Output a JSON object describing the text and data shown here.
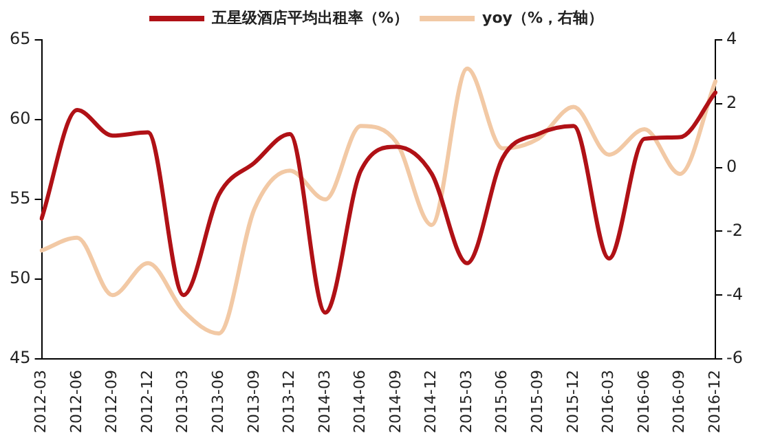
{
  "chart_data": {
    "type": "line",
    "categories": [
      "2012-03",
      "2012-06",
      "2012-09",
      "2012-12",
      "2013-03",
      "2013-06",
      "2013-09",
      "2013-12",
      "2014-03",
      "2014-06",
      "2014-09",
      "2014-12",
      "2015-03",
      "2015-06",
      "2015-09",
      "2015-12",
      "2016-03",
      "2016-06",
      "2016-09",
      "2016-12"
    ],
    "series": [
      {
        "name": "五星级酒店平均出租率（%）",
        "color": "#b01116",
        "values": [
          53.8,
          60.6,
          59.0,
          59.2,
          49.0,
          55.3,
          57.3,
          59.1,
          47.9,
          56.8,
          58.3,
          56.6,
          51.0,
          57.6,
          59.1,
          59.6,
          51.3,
          58.8,
          58.9,
          61.7
        ]
      },
      {
        "name": "yoy（%，右轴）",
        "color": "#f2c9a5",
        "axis": "y2",
        "values": [
          -2.6,
          -2.2,
          -4.0,
          -3.0,
          -4.5,
          -5.2,
          -1.3,
          -0.1,
          -1.0,
          1.3,
          0.8,
          -1.8,
          3.1,
          0.6,
          0.9,
          1.9,
          0.4,
          1.2,
          -0.2,
          2.7
        ]
      }
    ],
    "ylim": [
      45,
      65
    ],
    "yticks": [
      45,
      50,
      55,
      60,
      65
    ],
    "y2lim": [
      -6,
      4
    ],
    "y2ticks": [
      -6,
      -4,
      -2,
      0,
      2,
      4
    ],
    "grid": false,
    "legend": "top",
    "marker": "none",
    "line_style": "solid"
  }
}
